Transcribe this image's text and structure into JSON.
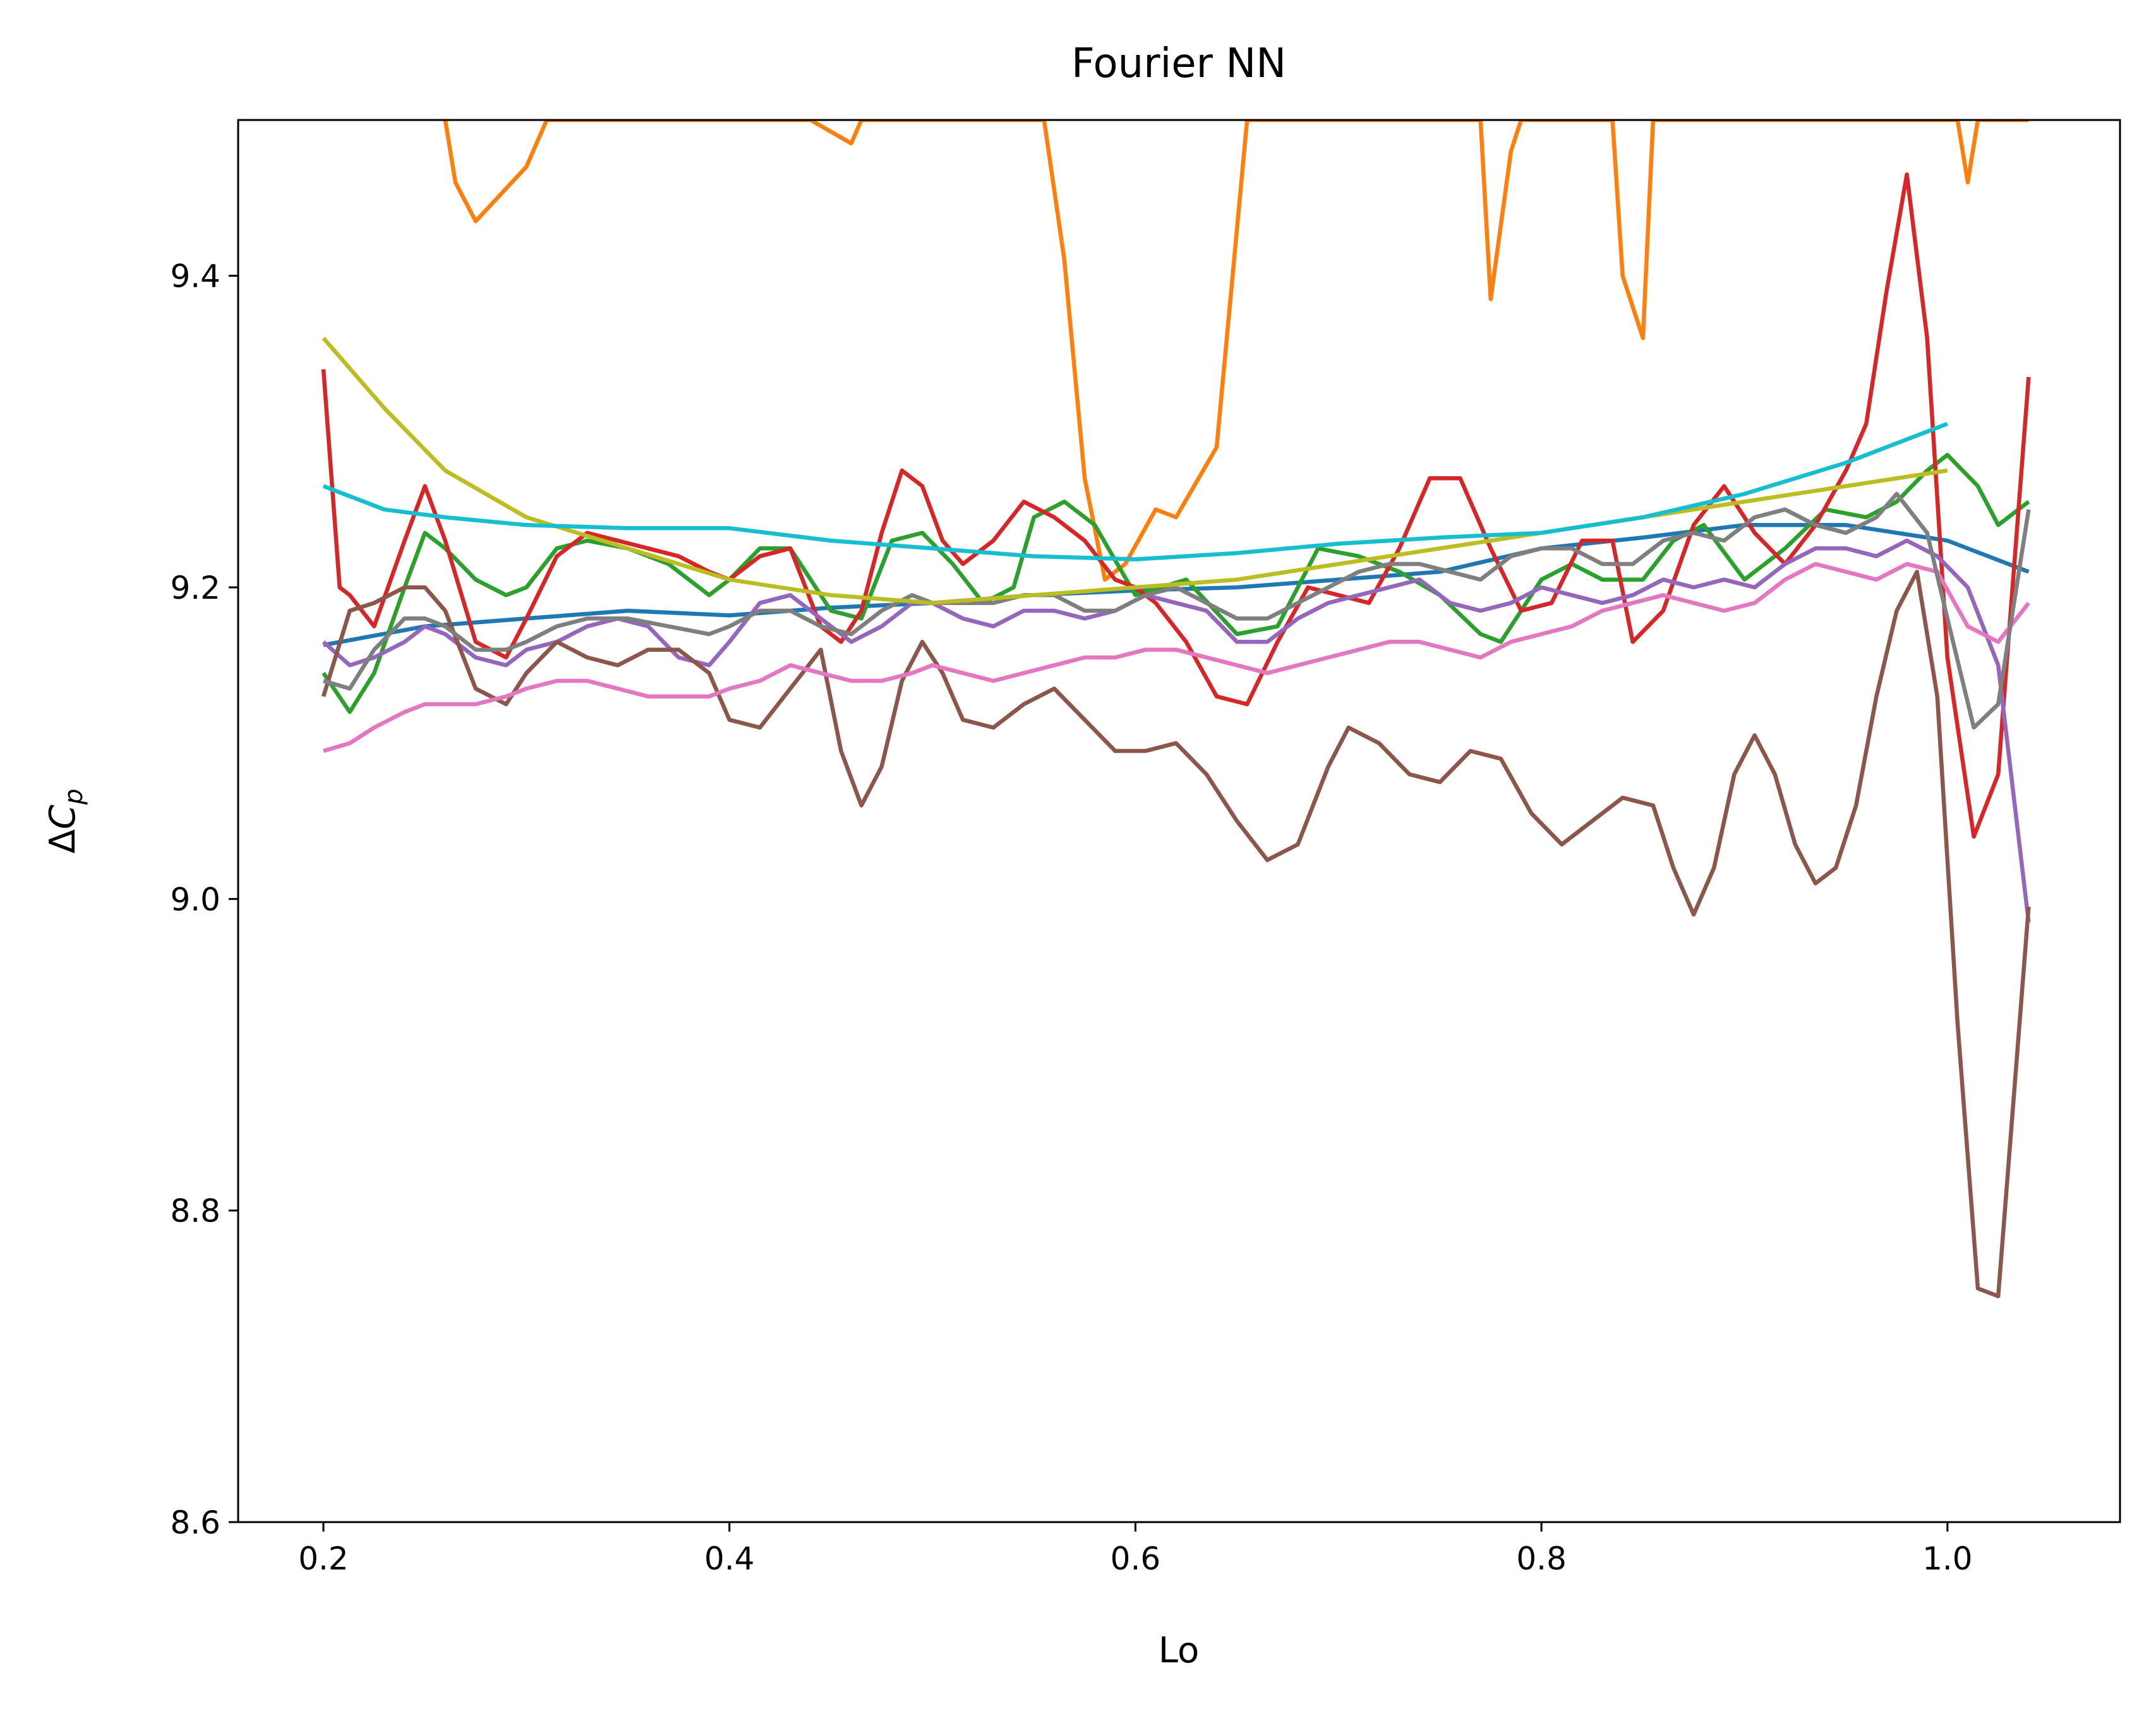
{
  "chart_data": {
    "type": "line",
    "title": "Fourier NN",
    "xlabel": "Lo",
    "ylabel": "ΔC_p",
    "ylabel_parts": {
      "delta": "Δ",
      "symbol": "C",
      "subscript": "p"
    },
    "xlim": [
      0.158,
      1.085
    ],
    "ylim": [
      8.6,
      9.5
    ],
    "xticks": [
      0.2,
      0.4,
      0.6,
      0.8,
      1.0
    ],
    "xtick_labels": [
      "0.2",
      "0.4",
      "0.6",
      "0.8",
      "1.0"
    ],
    "yticks": [
      8.6,
      8.8,
      9.0,
      9.2,
      9.4
    ],
    "ytick_labels": [
      "8.6",
      "8.8",
      "9.0",
      "9.2",
      "9.4"
    ],
    "grid": false,
    "series": [
      {
        "color": "#1f77b4",
        "x": [
          0.2,
          0.25,
          0.3,
          0.35,
          0.4,
          0.45,
          0.5,
          0.55,
          0.6,
          0.65,
          0.7,
          0.75,
          0.8,
          0.85,
          0.9,
          0.95,
          1.0,
          1.04
        ],
        "y": [
          9.163,
          9.175,
          9.18,
          9.185,
          9.182,
          9.187,
          9.19,
          9.195,
          9.198,
          9.2,
          9.205,
          9.21,
          9.225,
          9.232,
          9.24,
          9.24,
          9.23,
          9.21
        ]
      },
      {
        "color": "#ff7f0e",
        "x": [
          0.26,
          0.265,
          0.275,
          0.3,
          0.31,
          0.44,
          0.46,
          0.465,
          0.555,
          0.565,
          0.575,
          0.585,
          0.595,
          0.61,
          0.62,
          0.64,
          0.655,
          0.77,
          0.775,
          0.785,
          0.79,
          0.835,
          0.84,
          0.85,
          0.855,
          1.005,
          1.01,
          1.015,
          1.025,
          1.04
        ],
        "y": [
          9.5,
          9.46,
          9.435,
          9.47,
          9.5,
          9.5,
          9.485,
          9.5,
          9.5,
          9.41,
          9.27,
          9.205,
          9.215,
          9.25,
          9.245,
          9.29,
          9.5,
          9.5,
          9.385,
          9.48,
          9.5,
          9.5,
          9.4,
          9.36,
          9.5,
          9.5,
          9.46,
          9.5,
          9.5,
          9.5
        ]
      },
      {
        "color": "#2ca02c",
        "x": [
          0.2,
          0.213,
          0.225,
          0.24,
          0.25,
          0.26,
          0.275,
          0.29,
          0.3,
          0.315,
          0.33,
          0.35,
          0.37,
          0.39,
          0.4,
          0.415,
          0.43,
          0.45,
          0.465,
          0.48,
          0.495,
          0.51,
          0.525,
          0.54,
          0.55,
          0.565,
          0.58,
          0.6,
          0.625,
          0.65,
          0.67,
          0.69,
          0.71,
          0.73,
          0.75,
          0.77,
          0.78,
          0.8,
          0.815,
          0.83,
          0.85,
          0.865,
          0.88,
          0.9,
          0.92,
          0.94,
          0.96,
          0.975,
          0.99,
          1.0,
          1.015,
          1.025,
          1.04
        ],
        "y": [
          9.145,
          9.12,
          9.145,
          9.2,
          9.235,
          9.225,
          9.205,
          9.195,
          9.2,
          9.225,
          9.23,
          9.225,
          9.215,
          9.195,
          9.205,
          9.225,
          9.225,
          9.185,
          9.18,
          9.23,
          9.235,
          9.215,
          9.19,
          9.2,
          9.245,
          9.255,
          9.24,
          9.195,
          9.205,
          9.17,
          9.175,
          9.225,
          9.22,
          9.21,
          9.195,
          9.17,
          9.165,
          9.205,
          9.215,
          9.205,
          9.205,
          9.23,
          9.24,
          9.205,
          9.225,
          9.25,
          9.245,
          9.255,
          9.275,
          9.285,
          9.265,
          9.24,
          9.255
        ]
      },
      {
        "color": "#d62728",
        "x": [
          0.2,
          0.208,
          0.213,
          0.225,
          0.24,
          0.25,
          0.26,
          0.275,
          0.29,
          0.3,
          0.315,
          0.33,
          0.345,
          0.36,
          0.375,
          0.39,
          0.4,
          0.415,
          0.43,
          0.445,
          0.455,
          0.465,
          0.475,
          0.485,
          0.495,
          0.505,
          0.515,
          0.53,
          0.545,
          0.56,
          0.575,
          0.59,
          0.6,
          0.61,
          0.625,
          0.64,
          0.655,
          0.67,
          0.685,
          0.7,
          0.715,
          0.73,
          0.745,
          0.76,
          0.775,
          0.79,
          0.805,
          0.82,
          0.835,
          0.845,
          0.86,
          0.875,
          0.89,
          0.905,
          0.92,
          0.935,
          0.95,
          0.96,
          0.97,
          0.98,
          0.99,
          1.0,
          1.013,
          1.025,
          1.04
        ],
        "y": [
          9.34,
          9.2,
          9.195,
          9.175,
          9.23,
          9.265,
          9.23,
          9.165,
          9.155,
          9.18,
          9.22,
          9.235,
          9.23,
          9.225,
          9.22,
          9.21,
          9.205,
          9.22,
          9.225,
          9.175,
          9.165,
          9.185,
          9.235,
          9.275,
          9.265,
          9.23,
          9.215,
          9.23,
          9.255,
          9.245,
          9.23,
          9.205,
          9.2,
          9.19,
          9.165,
          9.13,
          9.125,
          9.165,
          9.2,
          9.195,
          9.19,
          9.225,
          9.27,
          9.27,
          9.225,
          9.185,
          9.19,
          9.23,
          9.23,
          9.165,
          9.185,
          9.24,
          9.265,
          9.235,
          9.215,
          9.24,
          9.275,
          9.305,
          9.39,
          9.465,
          9.36,
          9.155,
          9.04,
          9.08,
          9.335
        ]
      },
      {
        "color": "#9467bd",
        "x": [
          0.2,
          0.213,
          0.225,
          0.24,
          0.25,
          0.26,
          0.275,
          0.29,
          0.3,
          0.315,
          0.33,
          0.345,
          0.36,
          0.375,
          0.39,
          0.4,
          0.415,
          0.43,
          0.445,
          0.46,
          0.475,
          0.49,
          0.5,
          0.515,
          0.53,
          0.545,
          0.56,
          0.575,
          0.59,
          0.605,
          0.62,
          0.635,
          0.65,
          0.665,
          0.68,
          0.695,
          0.71,
          0.725,
          0.74,
          0.755,
          0.77,
          0.785,
          0.8,
          0.815,
          0.83,
          0.845,
          0.86,
          0.875,
          0.89,
          0.905,
          0.92,
          0.935,
          0.95,
          0.965,
          0.98,
          0.995,
          1.01,
          1.025,
          1.04
        ],
        "y": [
          9.165,
          9.15,
          9.155,
          9.165,
          9.175,
          9.17,
          9.155,
          9.15,
          9.16,
          9.165,
          9.175,
          9.18,
          9.175,
          9.155,
          9.15,
          9.165,
          9.19,
          9.195,
          9.18,
          9.165,
          9.175,
          9.19,
          9.19,
          9.18,
          9.175,
          9.185,
          9.185,
          9.18,
          9.185,
          9.195,
          9.19,
          9.185,
          9.165,
          9.165,
          9.18,
          9.19,
          9.195,
          9.2,
          9.205,
          9.19,
          9.185,
          9.19,
          9.2,
          9.195,
          9.19,
          9.195,
          9.205,
          9.2,
          9.205,
          9.2,
          9.215,
          9.225,
          9.225,
          9.22,
          9.23,
          9.22,
          9.2,
          9.15,
          8.985
        ]
      },
      {
        "color": "#8c564b",
        "x": [
          0.2,
          0.213,
          0.225,
          0.24,
          0.25,
          0.26,
          0.275,
          0.29,
          0.3,
          0.315,
          0.33,
          0.345,
          0.36,
          0.375,
          0.39,
          0.4,
          0.415,
          0.43,
          0.445,
          0.455,
          0.465,
          0.475,
          0.485,
          0.495,
          0.505,
          0.515,
          0.53,
          0.545,
          0.56,
          0.575,
          0.59,
          0.605,
          0.62,
          0.635,
          0.65,
          0.665,
          0.68,
          0.695,
          0.705,
          0.72,
          0.735,
          0.75,
          0.765,
          0.78,
          0.795,
          0.81,
          0.825,
          0.84,
          0.855,
          0.865,
          0.875,
          0.885,
          0.895,
          0.905,
          0.915,
          0.925,
          0.935,
          0.945,
          0.955,
          0.965,
          0.975,
          0.985,
          0.995,
          1.005,
          1.015,
          1.025,
          1.04
        ],
        "y": [
          9.13,
          9.185,
          9.19,
          9.2,
          9.2,
          9.185,
          9.135,
          9.125,
          9.145,
          9.165,
          9.155,
          9.15,
          9.16,
          9.16,
          9.145,
          9.115,
          9.11,
          9.135,
          9.16,
          9.095,
          9.06,
          9.085,
          9.14,
          9.165,
          9.145,
          9.115,
          9.11,
          9.125,
          9.135,
          9.115,
          9.095,
          9.095,
          9.1,
          9.08,
          9.05,
          9.025,
          9.035,
          9.085,
          9.11,
          9.1,
          9.08,
          9.075,
          9.095,
          9.09,
          9.055,
          9.035,
          9.05,
          9.065,
          9.06,
          9.02,
          8.99,
          9.02,
          9.08,
          9.105,
          9.08,
          9.035,
          9.01,
          9.02,
          9.06,
          9.13,
          9.185,
          9.21,
          9.13,
          8.92,
          8.75,
          8.745,
          8.995
        ]
      },
      {
        "color": "#e377c2",
        "x": [
          0.2,
          0.213,
          0.225,
          0.24,
          0.25,
          0.26,
          0.275,
          0.29,
          0.3,
          0.315,
          0.33,
          0.345,
          0.36,
          0.375,
          0.39,
          0.4,
          0.415,
          0.43,
          0.445,
          0.46,
          0.475,
          0.49,
          0.5,
          0.515,
          0.53,
          0.545,
          0.56,
          0.575,
          0.59,
          0.605,
          0.62,
          0.635,
          0.65,
          0.665,
          0.68,
          0.695,
          0.71,
          0.725,
          0.74,
          0.755,
          0.77,
          0.785,
          0.8,
          0.815,
          0.83,
          0.845,
          0.86,
          0.875,
          0.89,
          0.905,
          0.92,
          0.935,
          0.95,
          0.965,
          0.98,
          0.995,
          1.01,
          1.025,
          1.04
        ],
        "y": [
          9.095,
          9.1,
          9.11,
          9.12,
          9.125,
          9.125,
          9.125,
          9.13,
          9.135,
          9.14,
          9.14,
          9.135,
          9.13,
          9.13,
          9.13,
          9.135,
          9.14,
          9.15,
          9.145,
          9.14,
          9.14,
          9.145,
          9.15,
          9.145,
          9.14,
          9.145,
          9.15,
          9.155,
          9.155,
          9.16,
          9.16,
          9.155,
          9.15,
          9.145,
          9.15,
          9.155,
          9.16,
          9.165,
          9.165,
          9.16,
          9.155,
          9.165,
          9.17,
          9.175,
          9.185,
          9.19,
          9.195,
          9.19,
          9.185,
          9.19,
          9.205,
          9.215,
          9.21,
          9.205,
          9.215,
          9.21,
          9.175,
          9.165,
          9.19
        ]
      },
      {
        "color": "#7f7f7f",
        "x": [
          0.2,
          0.213,
          0.225,
          0.24,
          0.25,
          0.26,
          0.275,
          0.29,
          0.3,
          0.315,
          0.33,
          0.35,
          0.37,
          0.39,
          0.4,
          0.415,
          0.43,
          0.445,
          0.46,
          0.475,
          0.49,
          0.5,
          0.515,
          0.53,
          0.545,
          0.56,
          0.575,
          0.59,
          0.605,
          0.62,
          0.635,
          0.65,
          0.665,
          0.68,
          0.695,
          0.71,
          0.725,
          0.74,
          0.755,
          0.77,
          0.785,
          0.8,
          0.815,
          0.83,
          0.845,
          0.86,
          0.875,
          0.89,
          0.905,
          0.92,
          0.935,
          0.95,
          0.965,
          0.975,
          0.99,
          1.0,
          1.013,
          1.025,
          1.04
        ],
        "y": [
          9.14,
          9.135,
          9.16,
          9.18,
          9.18,
          9.175,
          9.16,
          9.16,
          9.165,
          9.175,
          9.18,
          9.18,
          9.175,
          9.17,
          9.175,
          9.185,
          9.185,
          9.175,
          9.17,
          9.185,
          9.195,
          9.19,
          9.19,
          9.19,
          9.195,
          9.195,
          9.185,
          9.185,
          9.195,
          9.2,
          9.19,
          9.18,
          9.18,
          9.19,
          9.2,
          9.21,
          9.215,
          9.215,
          9.21,
          9.205,
          9.22,
          9.225,
          9.225,
          9.215,
          9.215,
          9.23,
          9.235,
          9.23,
          9.245,
          9.25,
          9.24,
          9.235,
          9.245,
          9.26,
          9.235,
          9.18,
          9.11,
          9.125,
          9.25
        ]
      },
      {
        "color": "#bcbd22",
        "x": [
          0.2,
          0.23,
          0.26,
          0.3,
          0.35,
          0.4,
          0.45,
          0.5,
          0.55,
          0.6,
          0.65,
          0.7,
          0.75,
          0.8,
          0.85,
          0.9,
          0.95,
          1.0
        ],
        "y": [
          9.36,
          9.315,
          9.275,
          9.245,
          9.225,
          9.205,
          9.195,
          9.19,
          9.195,
          9.2,
          9.205,
          9.215,
          9.225,
          9.235,
          9.245,
          9.255,
          9.265,
          9.275
        ]
      },
      {
        "color": "#17becf",
        "x": [
          0.2,
          0.23,
          0.26,
          0.3,
          0.35,
          0.4,
          0.45,
          0.5,
          0.55,
          0.6,
          0.65,
          0.7,
          0.75,
          0.8,
          0.85,
          0.9,
          0.95,
          1.0
        ],
        "y": [
          9.265,
          9.25,
          9.245,
          9.24,
          9.238,
          9.238,
          9.23,
          9.225,
          9.22,
          9.218,
          9.222,
          9.228,
          9.232,
          9.235,
          9.245,
          9.26,
          9.28,
          9.305
        ]
      }
    ]
  }
}
